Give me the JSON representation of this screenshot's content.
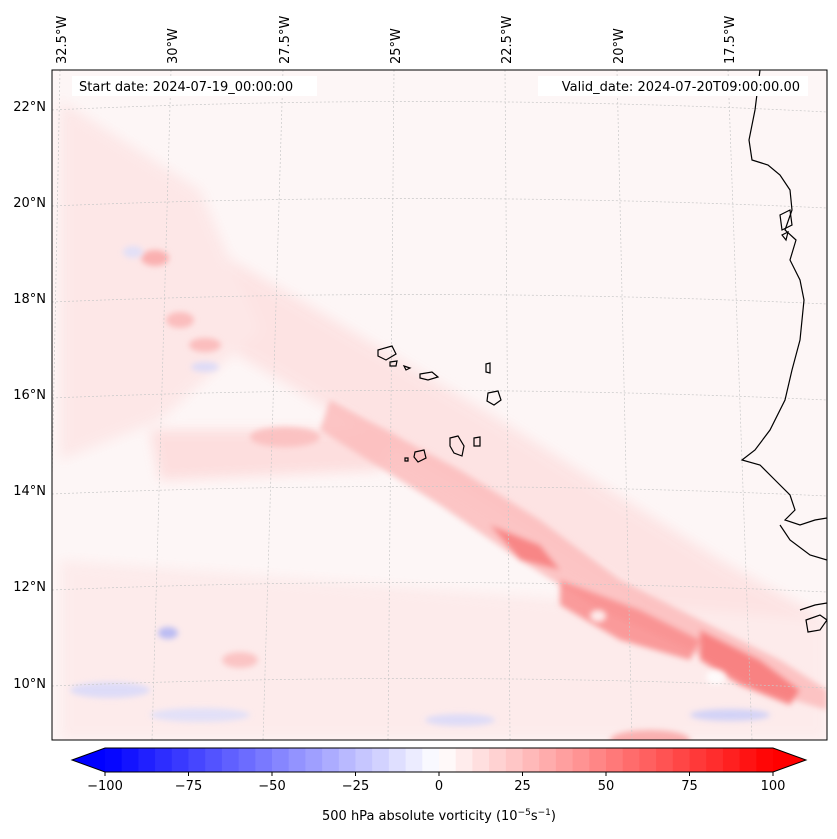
{
  "map": {
    "start_date": "Start date: 2024-07-19_00:00:00",
    "valid_date": "Valid_date: 2024-07-20T09:00:00.00",
    "lon_labels": [
      "32.5°W",
      "30°W",
      "27.5°W",
      "25°W",
      "22.5°W",
      "20°W",
      "17.5°W"
    ],
    "lat_labels": [
      "22°N",
      "20°N",
      "18°N",
      "16°N",
      "14°N",
      "12°N",
      "10°N"
    ]
  },
  "colorbar": {
    "label_main": "500 hPa absolute vorticity (10",
    "label_sup1": "−5",
    "label_mid": "s",
    "label_sup2": "−1",
    "label_end": ")",
    "ticks": [
      "−100",
      "−75",
      "−50",
      "−25",
      "0",
      "25",
      "50",
      "75",
      "100"
    ],
    "tick_values": [
      -100,
      -75,
      -50,
      -25,
      0,
      25,
      50,
      75,
      100
    ],
    "range": [
      -100,
      100
    ],
    "levels": 40,
    "neg_color": "#0000ff",
    "pos_color": "#ff0000"
  },
  "colors": {
    "background_tint": "#fdf4f4",
    "coastline": "#000000",
    "gridline": "#c8c8c8"
  }
}
